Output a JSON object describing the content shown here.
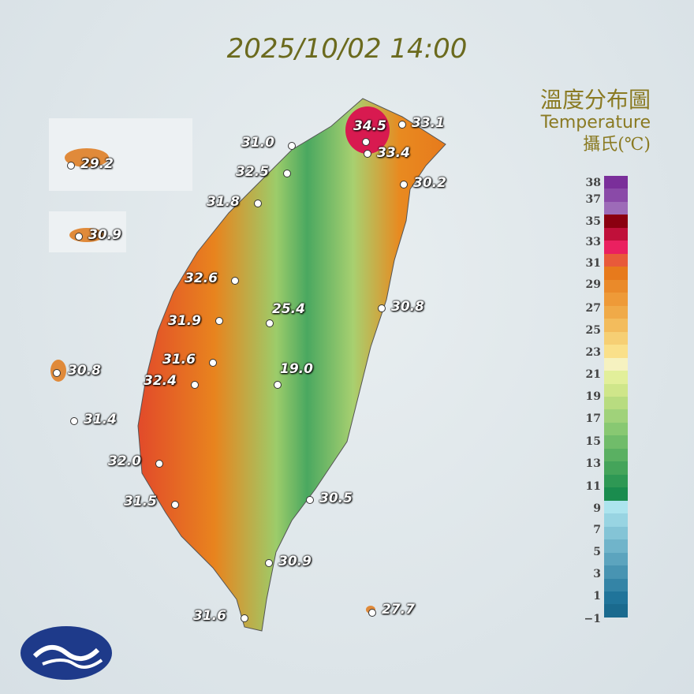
{
  "title": "2025/10/02 14:00",
  "legend": {
    "title_zh": "溫度分布圖",
    "title_en": "Temperature",
    "unit": "攝氏(℃)",
    "ticks": [
      "38",
      "37",
      "35",
      "33",
      "31",
      "29",
      "27",
      "25",
      "23",
      "21",
      "19",
      "17",
      "15",
      "13",
      "11",
      "9",
      "7",
      "5",
      "3",
      "1",
      "−1"
    ],
    "colors": [
      "#7a2f9a",
      "#8a4aa8",
      "#9d6bb8",
      "#8b0010",
      "#c0103a",
      "#ea2060",
      "#e85a3a",
      "#e77a1c",
      "#ea8a2a",
      "#ee9a38",
      "#f0aa48",
      "#f3bc5c",
      "#f6cf74",
      "#fae08a",
      "#f6f2c0",
      "#e2ef9a",
      "#cfe68a",
      "#b8dc80",
      "#a0d27a",
      "#88c872",
      "#70bc6a",
      "#5ab062",
      "#44a45a",
      "#2e9854",
      "#1a8c4e",
      "#ace4ee",
      "#98d4e2",
      "#84c4d6",
      "#70b4ca",
      "#5ca4be",
      "#4894b2",
      "#3484a6",
      "#20749a",
      "#1a6a8e"
    ]
  },
  "stations": [
    {
      "value": "34.5",
      "color": "#c0103a"
    },
    {
      "value": "33.1"
    },
    {
      "value": "33.4"
    },
    {
      "value": "31.0"
    },
    {
      "value": "32.5"
    },
    {
      "value": "30.2"
    },
    {
      "value": "31.8"
    },
    {
      "value": "32.6"
    },
    {
      "value": "25.4"
    },
    {
      "value": "30.8"
    },
    {
      "value": "31.9"
    },
    {
      "value": "31.6"
    },
    {
      "value": "19.0"
    },
    {
      "value": "32.4"
    },
    {
      "value": "30.8"
    },
    {
      "value": "31.4"
    },
    {
      "value": "32.0"
    },
    {
      "value": "31.5"
    },
    {
      "value": "30.5"
    },
    {
      "value": "30.9"
    },
    {
      "value": "31.6"
    },
    {
      "value": "27.7"
    },
    {
      "value": "29.2"
    },
    {
      "value": "30.9"
    }
  ],
  "logo": "cwa-logo"
}
